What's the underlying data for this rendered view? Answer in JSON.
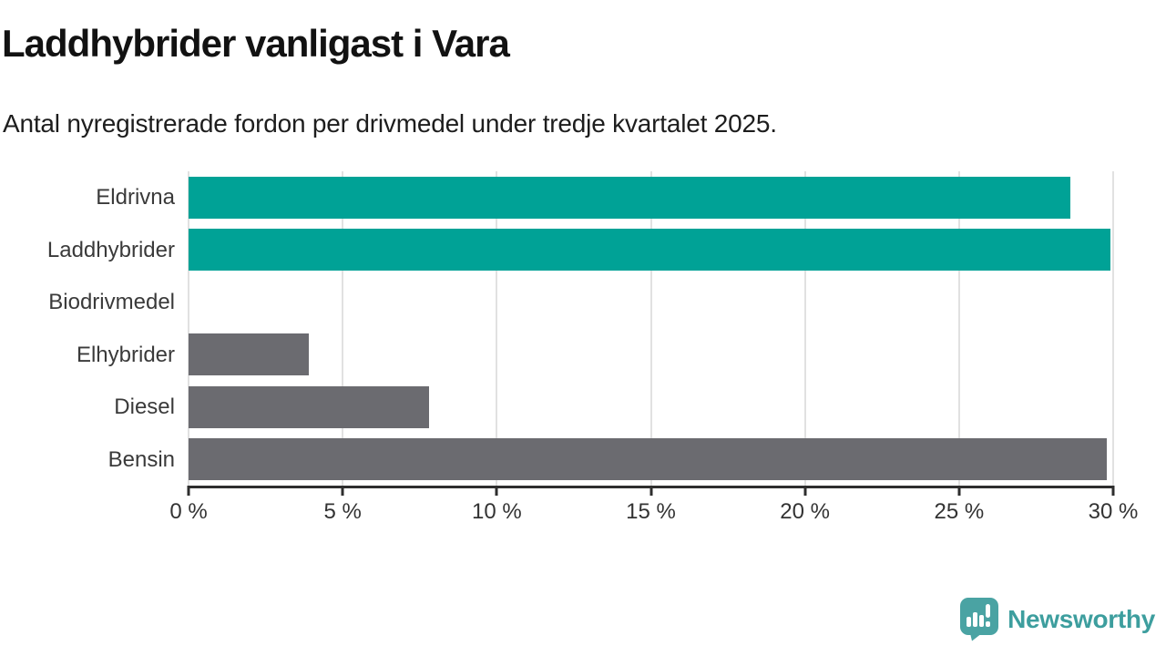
{
  "header": {
    "title": "Laddhybrider vanligast i Vara",
    "subtitle": "Antal nyregistrerade fordon per drivmedel under tredje kvartalet 2025."
  },
  "chart_data": {
    "type": "bar",
    "orientation": "horizontal",
    "title": "Laddhybrider vanligast i Vara",
    "subtitle": "Antal nyregistrerade fordon per drivmedel under tredje kvartalet 2025.",
    "categories": [
      "Eldrivna",
      "Laddhybrider",
      "Biodrivmedel",
      "Elhybrider",
      "Diesel",
      "Bensin"
    ],
    "values": [
      28.6,
      29.9,
      0,
      3.9,
      7.8,
      29.8
    ],
    "unit": "%",
    "bar_colors": [
      "#00a296",
      "#00a296",
      "#00a296",
      "#6b6b70",
      "#6b6b70",
      "#6b6b70"
    ],
    "xlim": [
      0,
      30
    ],
    "x_ticks": [
      {
        "value": 0,
        "label": "0 %"
      },
      {
        "value": 5,
        "label": "5 %"
      },
      {
        "value": 10,
        "label": "10 %"
      },
      {
        "value": 15,
        "label": "15 %"
      },
      {
        "value": 20,
        "label": "20 %"
      },
      {
        "value": 25,
        "label": "25 %"
      },
      {
        "value": 30,
        "label": "30 %"
      }
    ],
    "grid": "vertical-only",
    "legend": "none",
    "xlabel": "",
    "ylabel": ""
  },
  "footer": {
    "brand": "Newsworthy",
    "logo_icon": "newsworthy-speech-bubble-bar-chart-icon"
  },
  "colors": {
    "bar_teal": "#00a296",
    "bar_gray": "#6b6b70",
    "logo_teal": "#4aa3a3",
    "logo_text": "#3d9e9e",
    "logo_glyph": "#ffffff",
    "gridline": "#e1e1e1",
    "axis": "#2e2e2e",
    "axis_text": "#333333",
    "title_text": "#121212"
  }
}
